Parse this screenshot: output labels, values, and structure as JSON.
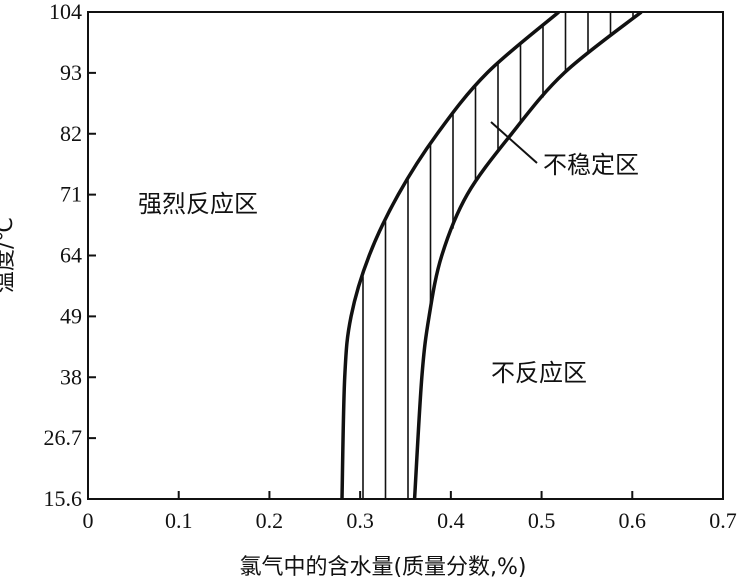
{
  "chart_data": {
    "type": "area",
    "title": "",
    "xlabel": "氯气中的含水量(质量分数,%)",
    "ylabel": "温度/℃",
    "xlim": [
      0,
      0.7
    ],
    "x_ticks": [
      "0",
      "0.1",
      "0.2",
      "0.3",
      "0.4",
      "0.5",
      "0.6",
      "0.7"
    ],
    "x_tick_values": [
      0,
      0.1,
      0.2,
      0.3,
      0.4,
      0.5,
      0.6,
      0.7
    ],
    "y_ticks": [
      "15.6",
      "26.7",
      "38",
      "49",
      "64",
      "71",
      "82",
      "93",
      "104"
    ],
    "y_scale": "categorical-equal-spacing",
    "series": [
      {
        "role": "left-boundary",
        "points": [
          {
            "x": 0.28,
            "y": "15.6"
          },
          {
            "x": 0.283,
            "y": "38"
          },
          {
            "x": 0.29,
            "y": "49"
          },
          {
            "x": 0.31,
            "y": "64"
          },
          {
            "x": 0.342,
            "y": "71"
          },
          {
            "x": 0.385,
            "y": "82"
          },
          {
            "x": 0.44,
            "y": "93"
          },
          {
            "x": 0.519,
            "y": "104"
          }
        ]
      },
      {
        "role": "right-boundary",
        "points": [
          {
            "x": 0.36,
            "y": "15.6"
          },
          {
            "x": 0.368,
            "y": "38"
          },
          {
            "x": 0.376,
            "y": "49"
          },
          {
            "x": 0.39,
            "y": "64"
          },
          {
            "x": 0.418,
            "y": "71"
          },
          {
            "x": 0.467,
            "y": "82"
          },
          {
            "x": 0.525,
            "y": "93"
          },
          {
            "x": 0.61,
            "y": "104"
          }
        ]
      }
    ],
    "regions": [
      {
        "label": "强烈反应区"
      },
      {
        "label": "不稳定区"
      },
      {
        "label": "不反应区"
      }
    ],
    "grid": false,
    "legend": "none"
  }
}
